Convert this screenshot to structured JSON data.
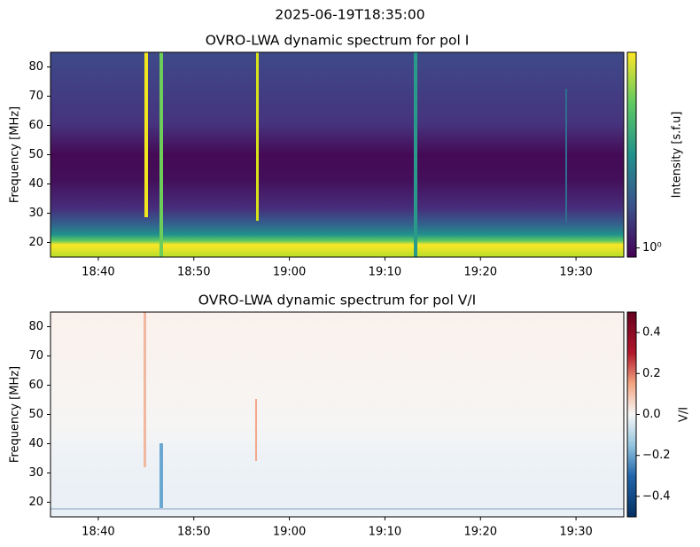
{
  "title": "2025-06-19T18:35:00",
  "chart_data": [
    {
      "type": "heatmap",
      "title": "OVRO-LWA dynamic spectrum for pol I",
      "ylabel": "Frequency [MHz]",
      "colormap": "viridis",
      "xlim": [
        "18:35",
        "19:35"
      ],
      "xticks": [
        "18:40",
        "18:50",
        "19:00",
        "19:10",
        "19:20",
        "19:30"
      ],
      "ylim": [
        15,
        85
      ],
      "yticks": [
        20,
        30,
        40,
        50,
        60,
        70,
        80
      ],
      "colorbar": {
        "label": "Intensity [s.f.u]",
        "scale": "log",
        "clim": [
          0.9,
          9.5
        ],
        "ticks": [
          {
            "value": 1,
            "label": "10⁰"
          }
        ]
      }
    },
    {
      "type": "heatmap",
      "title": "OVRO-LWA dynamic spectrum for pol V/I",
      "ylabel": "Frequency [MHz]",
      "colormap": "RdBu_r",
      "xlim": [
        "18:35",
        "19:35"
      ],
      "xticks": [
        "18:40",
        "18:50",
        "19:00",
        "19:10",
        "19:20",
        "19:30"
      ],
      "ylim": [
        15,
        85
      ],
      "yticks": [
        20,
        30,
        40,
        50,
        60,
        70,
        80
      ],
      "colorbar": {
        "label": "V/I",
        "scale": "linear",
        "clim": [
          -0.5,
          0.5
        ],
        "ticks": [
          {
            "value": -0.4,
            "label": "−0.4"
          },
          {
            "value": -0.2,
            "label": "−0.2"
          },
          {
            "value": 0,
            "label": "0.0"
          },
          0.2,
          0.4
        ]
      }
    }
  ]
}
